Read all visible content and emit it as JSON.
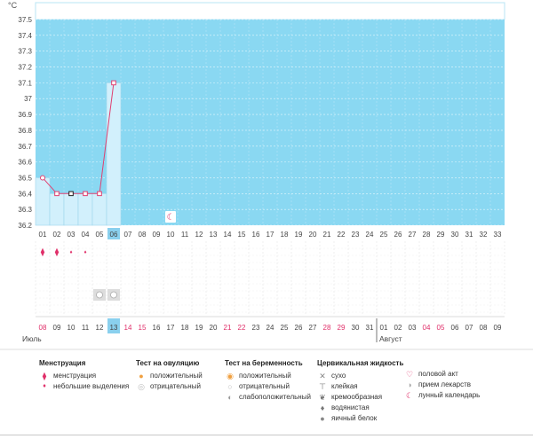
{
  "chart_data": {
    "type": "line",
    "unit_label": "°C",
    "ylim": [
      36.2,
      37.5
    ],
    "yticks": [
      "37.5",
      "37.4",
      "37.3",
      "37.2",
      "37.1",
      "37",
      "36.9",
      "36.8",
      "36.7",
      "36.6",
      "36.5",
      "36.4",
      "36.3",
      "36.2"
    ],
    "cycle_days": [
      "01",
      "02",
      "03",
      "04",
      "05",
      "06",
      "07",
      "08",
      "09",
      "10",
      "11",
      "12",
      "13",
      "14",
      "15",
      "16",
      "17",
      "18",
      "19",
      "20",
      "21",
      "22",
      "23",
      "24",
      "25",
      "26",
      "27",
      "28",
      "29",
      "30",
      "31",
      "32",
      "33"
    ],
    "dates": [
      "08",
      "09",
      "10",
      "11",
      "12",
      "13",
      "14",
      "15",
      "16",
      "17",
      "18",
      "19",
      "20",
      "21",
      "22",
      "23",
      "24",
      "25",
      "26",
      "27",
      "28",
      "29",
      "30",
      "31",
      "01",
      "02",
      "03",
      "04",
      "05",
      "06",
      "07",
      "08",
      "09"
    ],
    "weekend_dates_index": [
      0,
      6,
      7,
      13,
      14,
      20,
      21,
      27,
      28
    ],
    "current_day_index": 5,
    "series": [
      {
        "x": [
          1,
          2,
          3,
          4,
          5,
          6
        ],
        "y": [
          36.5,
          36.4,
          36.4,
          36.4,
          36.4,
          37.1
        ],
        "color": "#e04070"
      }
    ],
    "markers": [
      "open-circle",
      "open-square",
      "black-square",
      "open-square",
      "open-square",
      "open-square"
    ],
    "month_labels": [
      "Июль",
      "Август"
    ],
    "month_start_index": [
      0,
      24
    ]
  },
  "day_markers": {
    "menstruation_days": [
      1,
      2
    ],
    "spotting_days": [
      3,
      4
    ],
    "small_drop_on_day_2": true,
    "medicine_days": [
      5,
      6
    ],
    "lunar_day": 10
  },
  "colors": {
    "chart_bg": "#8ad8f2",
    "bar": "#d2f0fc",
    "line": "#e04070",
    "accent": "#e0306a",
    "today": "#8ad0ee"
  },
  "legend": {
    "groups": [
      {
        "title": "Менструация",
        "items": [
          {
            "icon": "drop-pair-icon",
            "label": "менструация"
          },
          {
            "icon": "drop-icon",
            "label": "небольшие выделения"
          }
        ]
      },
      {
        "title": "Тест на овуляцию",
        "items": [
          {
            "icon": "positive-circle-icon",
            "label": "положительный"
          },
          {
            "icon": "negative-circle-icon",
            "label": "отрицательный"
          }
        ]
      },
      {
        "title": "Тест на беременность",
        "items": [
          {
            "icon": "positive-circle-icon",
            "label": "положительный"
          },
          {
            "icon": "negative-circle-icon",
            "label": "отрицательный"
          },
          {
            "icon": "weak-circle-icon",
            "label": "слабоположительный"
          }
        ]
      },
      {
        "title": "Цервикальная жидкость",
        "items": [
          {
            "icon": "cross-icon",
            "label": "сухо"
          },
          {
            "icon": "sticky-icon",
            "label": "клейкая"
          },
          {
            "icon": "creamy-icon",
            "label": "кремообразная"
          },
          {
            "icon": "watery-icon",
            "label": "водянистая"
          },
          {
            "icon": "eggwhite-icon",
            "label": "яичный белок"
          }
        ]
      },
      {
        "title": "",
        "items": [
          {
            "icon": "heart-icon",
            "label": "половой акт"
          },
          {
            "icon": "pill-icon",
            "label": "прием лекарств"
          },
          {
            "icon": "moon-icon",
            "label": "лунный календарь"
          }
        ]
      }
    ]
  }
}
